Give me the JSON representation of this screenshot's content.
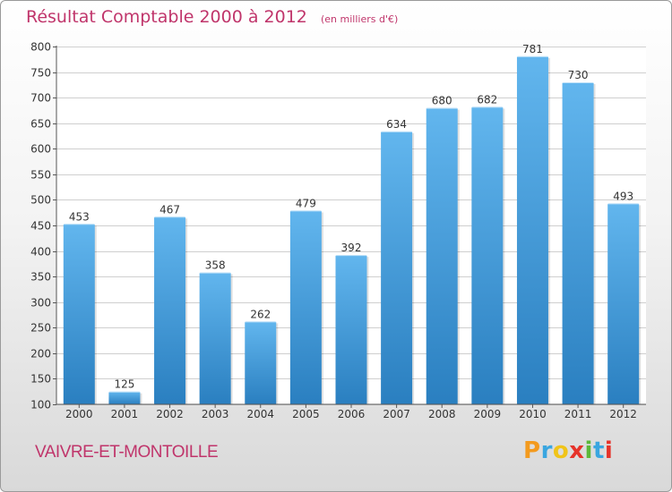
{
  "chart_data": {
    "type": "bar",
    "title": "Résultat Comptable 2000 à 2012",
    "subtitle": "(en milliers d'€)",
    "categories": [
      "2000",
      "2001",
      "2002",
      "2003",
      "2004",
      "2005",
      "2006",
      "2007",
      "2008",
      "2009",
      "2010",
      "2011",
      "2012"
    ],
    "values": [
      453,
      125,
      467,
      358,
      262,
      479,
      392,
      634,
      680,
      682,
      781,
      730,
      493
    ],
    "ylim": [
      100,
      800
    ],
    "yticks": [
      100,
      150,
      200,
      250,
      300,
      350,
      400,
      450,
      500,
      550,
      600,
      650,
      700,
      750,
      800
    ],
    "grid": true,
    "xlabel": "",
    "ylabel": ""
  },
  "place_name": "VAIVRE-ET-MONTOILLE",
  "logo": {
    "letters": [
      "P",
      "r",
      "o",
      "x",
      "i",
      "t",
      "i"
    ],
    "colors": [
      "#f39a1e",
      "#3aa6e0",
      "#f0c419",
      "#e6332a",
      "#5cb83a",
      "#3aa6e0",
      "#e6332a"
    ]
  },
  "colors": {
    "bar_top": "#62b6ee",
    "bar_bottom": "#2a7fc0",
    "title": "#c0356b",
    "grid": "#cfcfcf"
  }
}
